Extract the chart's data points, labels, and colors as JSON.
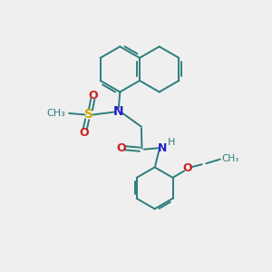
{
  "bg_color": "#efefef",
  "bond_color": "#2d7d7d",
  "bond_width": 1.4,
  "n_color": "#2020cc",
  "o_color": "#cc2020",
  "s_color": "#ccaa00",
  "font_size": 9,
  "fig_size": [
    3.0,
    3.0
  ],
  "dpi": 100,
  "xlim": [
    0,
    10
  ],
  "ylim": [
    0,
    10
  ]
}
